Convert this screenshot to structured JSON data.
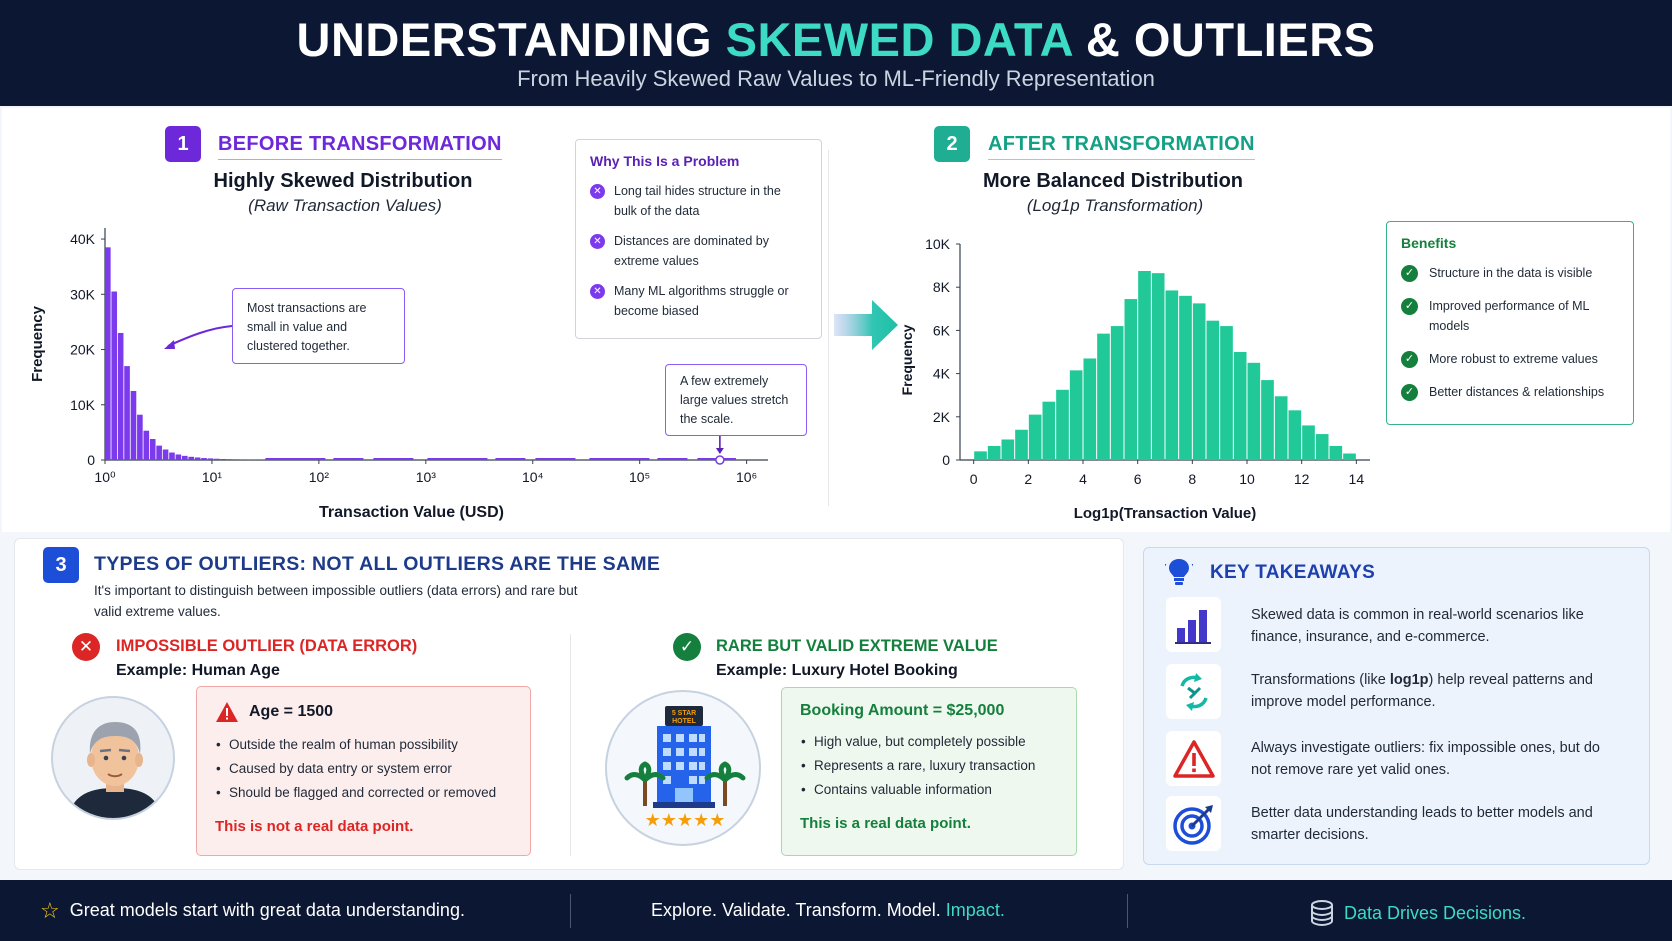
{
  "header": {
    "title_part1": "UNDERSTANDING ",
    "title_accent": "SKEWED DATA",
    "title_part2": " & OUTLIERS",
    "subtitle": "From Heavily Skewed Raw Values to ML-Friendly Representation"
  },
  "section1": {
    "number": "1",
    "title": "BEFORE TRANSFORMATION",
    "chart_title": "Highly Skewed Distribution",
    "chart_subtitle": "(Raw Transaction Values)",
    "callout_small": "Most transactions are small in value and clustered together.",
    "callout_large": "A few extremely large values stretch the scale."
  },
  "problem": {
    "heading": "Why This Is a Problem",
    "items": [
      "Long tail hides structure in the bulk of the data",
      "Distances are dominated by extreme values",
      "Many ML algorithms struggle or become biased"
    ]
  },
  "section2": {
    "number": "2",
    "title": "AFTER TRANSFORMATION",
    "chart_title": "More Balanced Distribution",
    "chart_subtitle": "(Log1p Transformation)"
  },
  "benefits": {
    "heading": "Benefits",
    "items": [
      "Structure in the data is visible",
      "Improved performance of ML models",
      "More robust to extreme values",
      "Better distances & relationships"
    ]
  },
  "chart_data": [
    {
      "type": "bar",
      "title": "Highly Skewed Distribution",
      "subtitle": "(Raw Transaction Values)",
      "xlabel": "Transaction Value (USD)",
      "ylabel": "Frequency",
      "x_scale": "log",
      "x_ticks": [
        "10⁰",
        "10¹",
        "10²",
        "10³",
        "10⁴",
        "10⁵",
        "10⁶"
      ],
      "y_ticks": [
        "0",
        "10K",
        "20K",
        "30K",
        "40K"
      ],
      "ylim": [
        0,
        42000
      ],
      "xlim_log10": [
        0,
        6.2
      ],
      "bins_log10_start": [
        0,
        0.06,
        0.12,
        0.18,
        0.24,
        0.3,
        0.36,
        0.42,
        0.48,
        0.54,
        0.6,
        0.66,
        0.72,
        0.78,
        0.84,
        0.9,
        0.96,
        1.02,
        1.08,
        1.14,
        1.2,
        1.26,
        1.32,
        1.38,
        1.44
      ],
      "values": [
        38500,
        30500,
        23000,
        17000,
        12500,
        8200,
        5300,
        3800,
        2600,
        1900,
        1350,
        1000,
        750,
        580,
        460,
        360,
        290,
        230,
        180,
        150,
        120,
        100,
        85,
        70,
        60
      ],
      "outlier_log10": 5.75,
      "grid": false,
      "color": "#7c3aed"
    },
    {
      "type": "bar",
      "title": "More Balanced Distribution",
      "subtitle": "(Log1p Transformation)",
      "xlabel": "Log1p(Transaction Value)",
      "ylabel": "Frequency",
      "x_ticks": [
        0,
        2,
        4,
        6,
        8,
        10,
        12,
        14
      ],
      "y_ticks": [
        "0",
        "2K",
        "4K",
        "6K",
        "8K",
        "10K"
      ],
      "xlim": [
        -0.5,
        14.5
      ],
      "ylim": [
        0,
        10000
      ],
      "bin_width": 0.5,
      "bins_start": [
        0,
        0.5,
        1,
        1.5,
        2,
        2.5,
        3,
        3.5,
        4,
        4.5,
        5,
        5.5,
        6,
        6.5,
        7,
        7.5,
        8,
        8.5,
        9,
        9.5,
        10,
        10.5,
        11,
        11.5,
        12,
        12.5,
        13,
        13.5
      ],
      "values": [
        400,
        650,
        950,
        1400,
        2100,
        2700,
        3250,
        4150,
        4700,
        5850,
        6200,
        7450,
        8750,
        8650,
        7850,
        7600,
        7250,
        6450,
        6200,
        5000,
        4500,
        3700,
        2950,
        2300,
        1600,
        1200,
        650,
        300
      ],
      "grid": false,
      "color": "#20c997"
    }
  ],
  "section3": {
    "number": "3",
    "title": "TYPES OF OUTLIERS: NOT ALL OUTLIERS ARE THE SAME",
    "intro": "It's important to distinguish between impossible outliers (data errors) and rare but valid extreme values.",
    "impossible": {
      "title": "IMPOSSIBLE OUTLIER (DATA ERROR)",
      "example": "Example: Human Age",
      "box_head": "Age = 1500",
      "items": [
        "Outside the realm of human possibility",
        "Caused by data entry or system error",
        "Should be flagged and corrected or removed"
      ],
      "foot": "This is not a real data point."
    },
    "valid": {
      "title": "RARE BUT VALID EXTREME VALUE",
      "example": "Example: Luxury Hotel Booking",
      "hotel_sign": "5 STAR HOTEL",
      "box_head": "Booking Amount = $25,000",
      "items": [
        "High value, but completely possible",
        "Represents a rare, luxury transaction",
        "Contains valuable information"
      ],
      "foot": "This is a real data point."
    }
  },
  "takeaways": {
    "title": "KEY TAKEAWAYS",
    "items": [
      {
        "icon": "bar-chart-icon",
        "pre": "Skewed data is common in real-world scenarios like finance, insurance, and e-commerce.",
        "bold": "",
        "post": ""
      },
      {
        "icon": "transform-arrows-icon",
        "pre": "Transformations (like ",
        "bold": "log1p",
        "post": ") help reveal patterns and improve model performance."
      },
      {
        "icon": "warning-triangle-icon",
        "pre": "Always investigate outliers: fix impossible ones, but do not remove rare yet valid ones.",
        "bold": "",
        "post": ""
      },
      {
        "icon": "target-icon",
        "pre": "Better data understanding leads to better models and smarter decisions.",
        "bold": "",
        "post": ""
      }
    ]
  },
  "footer": {
    "left": "Great models start with great data understanding.",
    "center_main": "Explore. Validate. Transform. Model. ",
    "center_accent": "Impact.",
    "right": "Data Drives Decisions."
  },
  "colors": {
    "navy": "#0b1733",
    "teal_accent": "#3ddbc3",
    "purple": "#7c3aed",
    "green": "#20c997",
    "red": "#dc2626",
    "dark_green": "#15803d",
    "blue": "#1e40af"
  }
}
